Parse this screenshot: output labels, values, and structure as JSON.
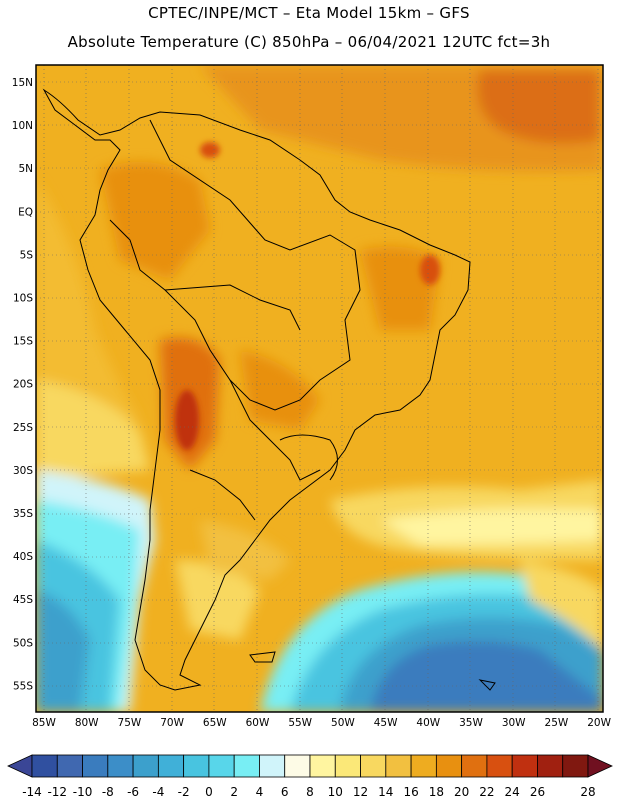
{
  "header": {
    "line1": "CPTEC/INPE/MCT –  Eta Model 15km – GFS",
    "line2": "Absolute Temperature (C) 850hPa – 06/04/2021 12UTC fct=3h"
  },
  "map": {
    "lat_labels": [
      "15N",
      "10N",
      "5N",
      "EQ",
      "5S",
      "10S",
      "15S",
      "20S",
      "25S",
      "30S",
      "35S",
      "40S",
      "45S",
      "50S",
      "55S"
    ],
    "lon_labels": [
      "85W",
      "80W",
      "75W",
      "70W",
      "65W",
      "60W",
      "55W",
      "50W",
      "45W",
      "40W",
      "35W",
      "30W",
      "25W",
      "20W"
    ]
  },
  "colorbar": {
    "labels": [
      "-14",
      "-12",
      "-10",
      "-8",
      "-6",
      "-4",
      "-2",
      "0",
      "2",
      "4",
      "6",
      "8",
      "10",
      "12",
      "14",
      "16",
      "18",
      "20",
      "22",
      "24",
      "26",
      "28"
    ],
    "colors": [
      "#3050a0",
      "#4068b0",
      "#3a7cbe",
      "#3c8ec8",
      "#3ca0cc",
      "#40b0d8",
      "#48c4e0",
      "#58d6ea",
      "#78eef4",
      "#d0f4fa",
      "#fdfbe6",
      "#fff5a0",
      "#fbe878",
      "#f8d860",
      "#f2c040",
      "#eeac20",
      "#e89010",
      "#e07010",
      "#d85010",
      "#c03010",
      "#a02010",
      "#801810"
    ]
  }
}
